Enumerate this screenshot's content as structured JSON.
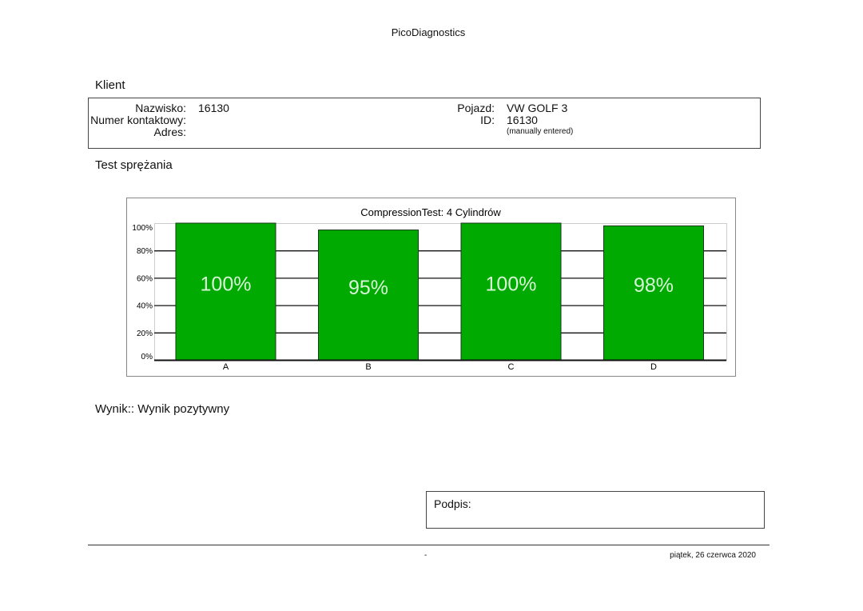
{
  "header": {
    "title": "PicoDiagnostics"
  },
  "client": {
    "section_title": "Klient",
    "surname_label": "Nazwisko:",
    "surname_value": "16130",
    "contact_label": "Numer kontaktowy:",
    "address_label": "Adres:",
    "vehicle_label": "Pojazd:",
    "vehicle_value": "VW GOLF 3",
    "id_label": "ID:",
    "id_value": "16130",
    "id_note": "(manually entered)"
  },
  "test": {
    "section_title": "Test sprężania"
  },
  "chart_data": {
    "type": "bar",
    "title": "CompressionTest: 4 Cylindrów",
    "categories": [
      "A",
      "B",
      "C",
      "D"
    ],
    "values": [
      100,
      95,
      100,
      98
    ],
    "data_labels": [
      "100%",
      "95%",
      "100%",
      "98%"
    ],
    "ylim": [
      0,
      100
    ],
    "yticks": [
      "0%",
      "20%",
      "40%",
      "60%",
      "80%",
      "100%"
    ],
    "grid": true,
    "bar_color": "#00aa00",
    "xlabel": "",
    "ylabel": ""
  },
  "result": {
    "text": "Wynik:: Wynik pozytywny"
  },
  "signature": {
    "label": "Podpis:"
  },
  "footer": {
    "center": "-",
    "date": "piątek, 26 czerwca 2020"
  }
}
